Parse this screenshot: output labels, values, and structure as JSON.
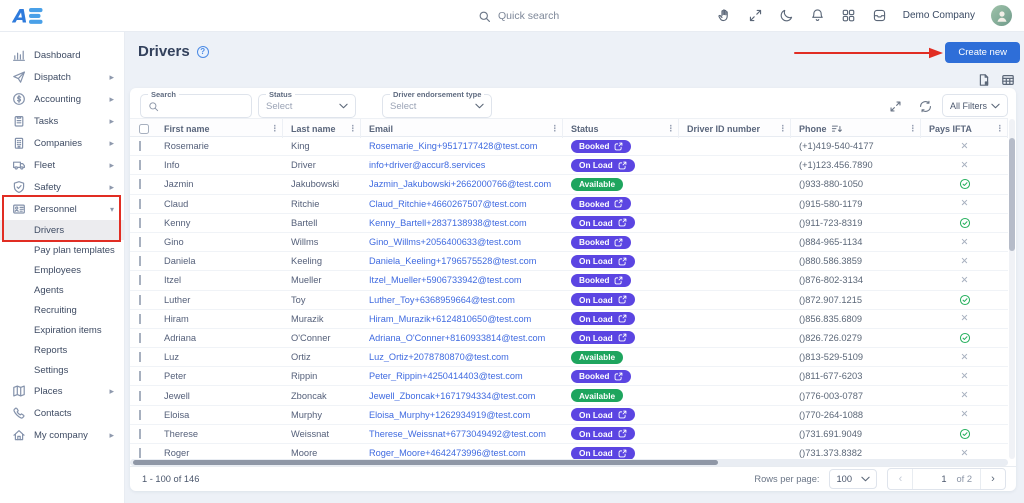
{
  "colors": {
    "accent": "#2e6ed8",
    "badge_purple": "#5b45e2",
    "badge_green": "#1ea55e",
    "annotation": "#e12d23",
    "link": "#3f6ae0"
  },
  "topbar": {
    "search_placeholder": "Quick search",
    "company": "Demo Company",
    "icons": [
      "hand",
      "fullscreen",
      "moon",
      "bell",
      "apps",
      "archive"
    ]
  },
  "sidebar": {
    "items": [
      {
        "label": "Dashboard",
        "icon": "dashboard",
        "type": "parent"
      },
      {
        "label": "Dispatch",
        "icon": "dispatch",
        "type": "parent",
        "expand": "right"
      },
      {
        "label": "Accounting",
        "icon": "accounting",
        "type": "parent",
        "expand": "right"
      },
      {
        "label": "Tasks",
        "icon": "tasks",
        "type": "parent",
        "expand": "right"
      },
      {
        "label": "Companies",
        "icon": "companies",
        "type": "parent",
        "expand": "right"
      },
      {
        "label": "Fleet",
        "icon": "fleet",
        "type": "parent",
        "expand": "right"
      },
      {
        "label": "Safety",
        "icon": "safety",
        "type": "parent",
        "expand": "right"
      },
      {
        "label": "Personnel",
        "icon": "personnel",
        "type": "parent",
        "expand": "down"
      },
      {
        "label": "Drivers",
        "type": "sub",
        "state": "active"
      },
      {
        "label": "Pay plan templates",
        "type": "sub"
      },
      {
        "label": "Employees",
        "type": "sub"
      },
      {
        "label": "Agents",
        "type": "sub"
      },
      {
        "label": "Recruiting",
        "type": "sub"
      },
      {
        "label": "Expiration items",
        "type": "sub"
      },
      {
        "label": "Reports",
        "type": "sub"
      },
      {
        "label": "Settings",
        "type": "sub"
      },
      {
        "label": "Places",
        "icon": "places",
        "type": "parent",
        "expand": "right"
      },
      {
        "label": "Contacts",
        "icon": "contacts",
        "type": "parent"
      },
      {
        "label": "My company",
        "icon": "company",
        "type": "parent",
        "expand": "right"
      }
    ]
  },
  "page": {
    "title": "Drivers",
    "create_label": "Create new"
  },
  "filters": {
    "search_label": "Search",
    "status_label": "Status",
    "status_value": "Select",
    "endorsement_label": "Driver endorsement type",
    "endorsement_value": "Select",
    "all_filters_label": "All Filters"
  },
  "table": {
    "columns": [
      {
        "label": "First name"
      },
      {
        "label": "Last name"
      },
      {
        "label": "Email"
      },
      {
        "label": "Status"
      },
      {
        "label": "Driver ID number"
      },
      {
        "label": "Phone",
        "sort": true
      },
      {
        "label": "Pays IFTA"
      }
    ],
    "rows": [
      {
        "first": "Rosemarie",
        "last": "King",
        "email": "Rosemarie_King+9517177428@test.com",
        "status": "Booked",
        "status_link": true,
        "driver_id": "",
        "phone": "(+1)419-540-4177",
        "ifta": false
      },
      {
        "first": "Info",
        "last": "Driver",
        "email": "info+driver@accur8.services",
        "status": "On Load",
        "status_link": true,
        "driver_id": "",
        "phone": "(+1)123.456.7890",
        "ifta": false
      },
      {
        "first": "Jazmin",
        "last": "Jakubowski",
        "email": "Jazmin_Jakubowski+2662000766@test.com",
        "status": "Available",
        "status_link": false,
        "driver_id": "",
        "phone": "()933-880-1050",
        "ifta": true
      },
      {
        "first": "Claud",
        "last": "Ritchie",
        "email": "Claud_Ritchie+4660267507@test.com",
        "status": "Booked",
        "status_link": true,
        "driver_id": "",
        "phone": "()915-580-1179",
        "ifta": false
      },
      {
        "first": "Kenny",
        "last": "Bartell",
        "email": "Kenny_Bartell+2837138938@test.com",
        "status": "On Load",
        "status_link": true,
        "driver_id": "",
        "phone": "()911-723-8319",
        "ifta": true
      },
      {
        "first": "Gino",
        "last": "Willms",
        "email": "Gino_Willms+2056400633@test.com",
        "status": "Booked",
        "status_link": true,
        "driver_id": "",
        "phone": "()884-965-1134",
        "ifta": false
      },
      {
        "first": "Daniela",
        "last": "Keeling",
        "email": "Daniela_Keeling+1796575528@test.com",
        "status": "On Load",
        "status_link": true,
        "driver_id": "",
        "phone": "()880.586.3859",
        "ifta": false
      },
      {
        "first": "Itzel",
        "last": "Mueller",
        "email": "Itzel_Mueller+5906733942@test.com",
        "status": "Booked",
        "status_link": true,
        "driver_id": "",
        "phone": "()876-802-3134",
        "ifta": false
      },
      {
        "first": "Luther",
        "last": "Toy",
        "email": "Luther_Toy+6368959664@test.com",
        "status": "On Load",
        "status_link": true,
        "driver_id": "",
        "phone": "()872.907.1215",
        "ifta": true
      },
      {
        "first": "Hiram",
        "last": "Murazik",
        "email": "Hiram_Murazik+6124810650@test.com",
        "status": "On Load",
        "status_link": true,
        "driver_id": "",
        "phone": "()856.835.6809",
        "ifta": false
      },
      {
        "first": "Adriana",
        "last": "O'Conner",
        "email": "Adriana_O'Conner+8160933814@test.com",
        "status": "On Load",
        "status_link": true,
        "driver_id": "",
        "phone": "()826.726.0279",
        "ifta": true
      },
      {
        "first": "Luz",
        "last": "Ortiz",
        "email": "Luz_Ortiz+2078780870@test.com",
        "status": "Available",
        "status_link": false,
        "driver_id": "",
        "phone": "()813-529-5109",
        "ifta": false
      },
      {
        "first": "Peter",
        "last": "Rippin",
        "email": "Peter_Rippin+4250414403@test.com",
        "status": "Booked",
        "status_link": true,
        "driver_id": "",
        "phone": "()811-677-6203",
        "ifta": false
      },
      {
        "first": "Jewell",
        "last": "Zboncak",
        "email": "Jewell_Zboncak+1671794334@test.com",
        "status": "Available",
        "status_link": false,
        "driver_id": "",
        "phone": "()776-003-0787",
        "ifta": false
      },
      {
        "first": "Eloisa",
        "last": "Murphy",
        "email": "Eloisa_Murphy+1262934919@test.com",
        "status": "On Load",
        "status_link": true,
        "driver_id": "",
        "phone": "()770-264-1088",
        "ifta": false
      },
      {
        "first": "Therese",
        "last": "Weissnat",
        "email": "Therese_Weissnat+6773049492@test.com",
        "status": "On Load",
        "status_link": true,
        "driver_id": "",
        "phone": "()731.691.9049",
        "ifta": true
      },
      {
        "first": "Roger",
        "last": "Moore",
        "email": "Roger_Moore+4642473996@test.com",
        "status": "On Load",
        "status_link": true,
        "driver_id": "",
        "phone": "()731.373.8382",
        "ifta": false
      }
    ]
  },
  "footer": {
    "range": "1 - 100 of 146",
    "rows_per_page_label": "Rows per page:",
    "rows_per_page_value": "100",
    "page": "1",
    "page_total": "of 2"
  }
}
